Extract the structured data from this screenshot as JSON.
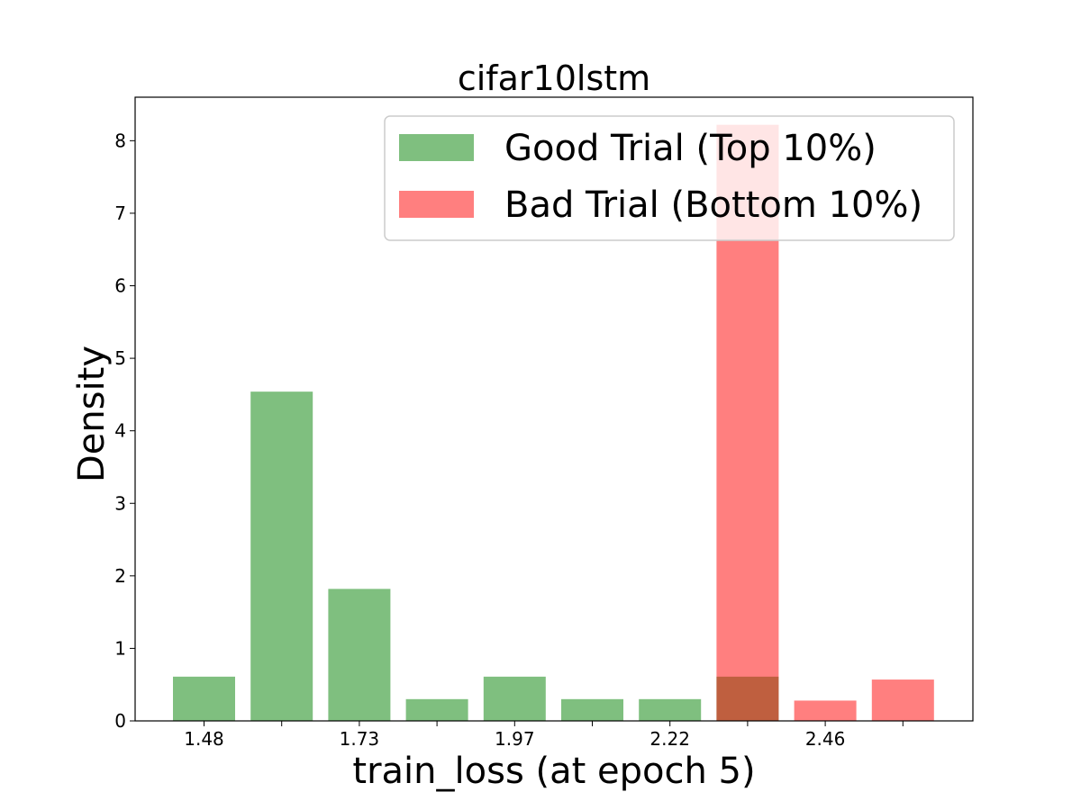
{
  "chart_data": {
    "type": "bar",
    "title": "cifar10lstm",
    "xlabel": "train_loss (at epoch 5)",
    "ylabel": "Density",
    "ylim": [
      0,
      8.6
    ],
    "yticks": [
      0,
      1,
      2,
      3,
      4,
      5,
      6,
      7,
      8
    ],
    "categories": [
      "1.48",
      "",
      "1.73",
      "",
      "1.97",
      "",
      "2.22",
      "",
      "2.46",
      ""
    ],
    "legend_position": "top-right",
    "grid": false,
    "series": [
      {
        "name": "Good Trial (Top 10%)",
        "color": "#008000",
        "opacity": 0.5,
        "values": [
          0.61,
          4.54,
          1.82,
          0.3,
          0.61,
          0.3,
          0.3,
          0.61,
          0,
          0
        ]
      },
      {
        "name": "Bad Trial (Bottom 10%)",
        "color": "#ff0000",
        "opacity": 0.5,
        "values": [
          0,
          0,
          0,
          0,
          0,
          0,
          0,
          8.22,
          0.28,
          0.57
        ]
      }
    ]
  }
}
